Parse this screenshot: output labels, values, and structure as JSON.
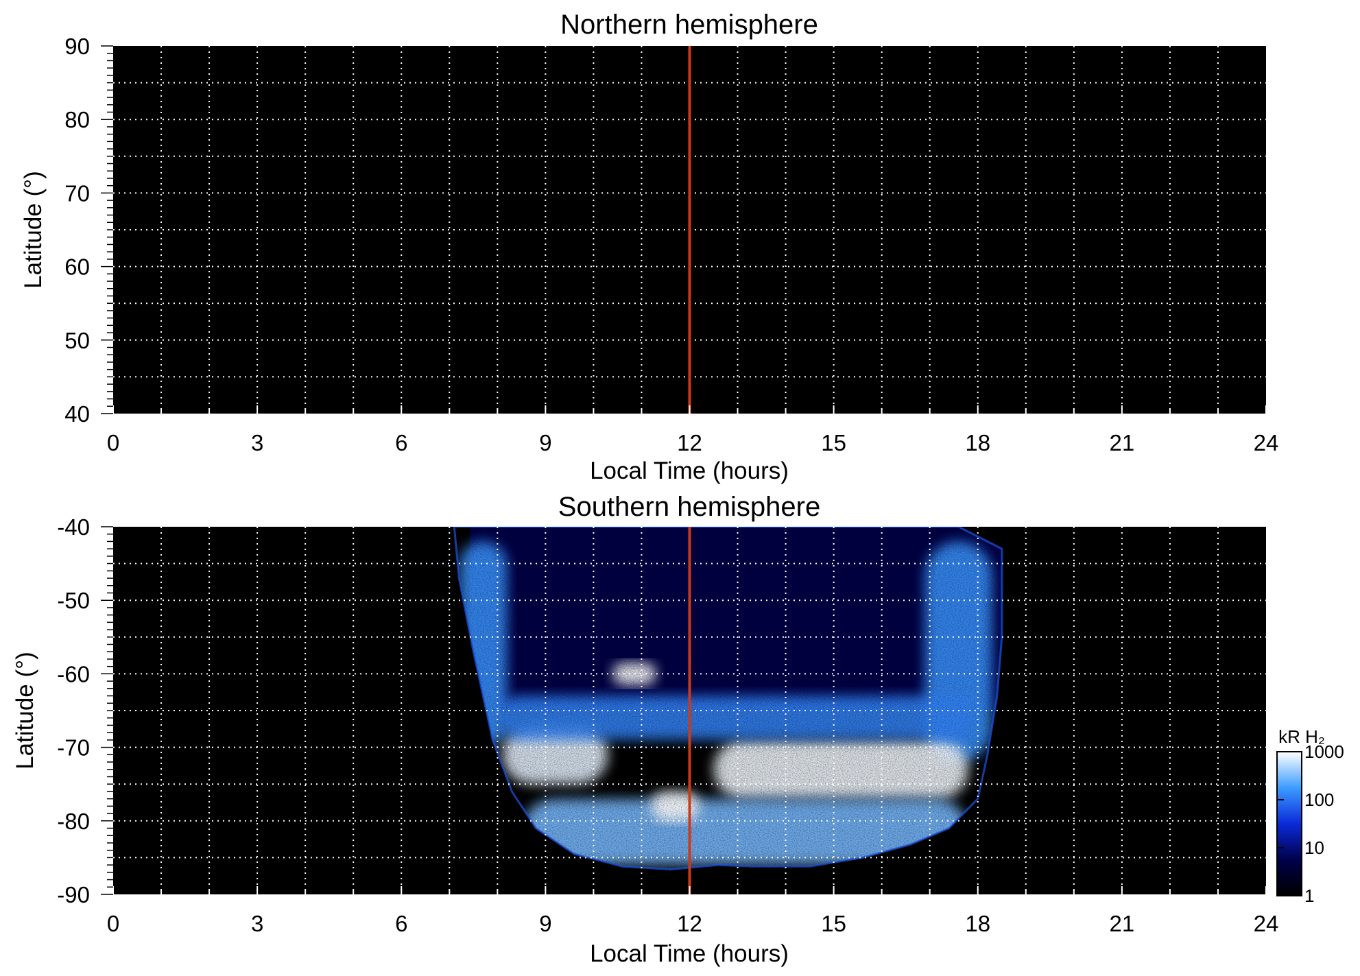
{
  "chart_data": [
    {
      "type": "heatmap",
      "title": "Northern hemisphere",
      "xlabel": "Local Time (hours)",
      "ylabel": "Latitude (°)",
      "xlim": [
        0,
        24
      ],
      "ylim": [
        40,
        90
      ],
      "x_ticks": [
        "0",
        "3",
        "6",
        "9",
        "12",
        "15",
        "18",
        "21",
        "24"
      ],
      "y_ticks": [
        "40",
        "50",
        "60",
        "70",
        "80",
        "90"
      ],
      "grid": true,
      "background": "#000000",
      "marker_line": {
        "x": 12,
        "color": "#cc3a1a"
      },
      "emission": []
    },
    {
      "type": "heatmap",
      "title": "Southern hemisphere",
      "xlabel": "Local Time (hours)",
      "ylabel": "Latitude (°)",
      "xlim": [
        0,
        24
      ],
      "ylim": [
        -90,
        -40
      ],
      "x_ticks": [
        "0",
        "3",
        "6",
        "9",
        "12",
        "15",
        "18",
        "21",
        "24"
      ],
      "y_ticks": [
        "-90",
        "-80",
        "-70",
        "-60",
        "-50",
        "-40"
      ],
      "grid": true,
      "background": "#000000",
      "marker_line": {
        "x": 12,
        "color": "#cc3a1a"
      },
      "coverage_outline": [
        [
          7.1,
          -40
        ],
        [
          7.2,
          -47
        ],
        [
          7.5,
          -57
        ],
        [
          7.7,
          -63
        ],
        [
          7.9,
          -69
        ],
        [
          8.3,
          -76
        ],
        [
          8.8,
          -81
        ],
        [
          9.6,
          -84.5
        ],
        [
          10.6,
          -86.2
        ],
        [
          11.6,
          -86.6
        ],
        [
          12.6,
          -86
        ],
        [
          13.3,
          -86.2
        ],
        [
          14.5,
          -86.2
        ],
        [
          15.6,
          -85
        ],
        [
          16.6,
          -83.2
        ],
        [
          17.4,
          -81
        ],
        [
          18,
          -77
        ],
        [
          18.2,
          -71
        ],
        [
          18.4,
          -63
        ],
        [
          18.5,
          -55
        ],
        [
          18.5,
          -43
        ],
        [
          17.6,
          -40
        ]
      ],
      "emission": [
        {
          "feature": "diffuse background",
          "lt": [
            8,
            18.3
          ],
          "lat": [
            -65,
            -40
          ],
          "intensity_kR": 5
        },
        {
          "feature": "dawn limb brightening",
          "lt": [
            7.2,
            8.2
          ],
          "lat": [
            -70,
            -42
          ],
          "intensity_kR": 150
        },
        {
          "feature": "dusk limb brightening",
          "lt": [
            16.9,
            18.3
          ],
          "lat": [
            -72,
            -42
          ],
          "intensity_kR": 150
        },
        {
          "feature": "main oval (dawn)",
          "lt": [
            8.1,
            10.3
          ],
          "lat": [
            -75,
            -67
          ],
          "intensity_kR": 800
        },
        {
          "feature": "main oval (noon–dusk)",
          "lt": [
            12.5,
            17.8
          ],
          "lat": [
            -77,
            -69
          ],
          "intensity_kR": 900
        },
        {
          "feature": "auroral band",
          "lt": [
            8,
            18
          ],
          "lat": [
            -69,
            -63
          ],
          "intensity_kR": 120
        },
        {
          "feature": "polar region",
          "lt": [
            8.5,
            17.8
          ],
          "lat": [
            -86,
            -77
          ],
          "intensity_kR": 300
        },
        {
          "feature": "bright spot",
          "lt": [
            11.2,
            12.2
          ],
          "lat": [
            -80,
            -76
          ],
          "intensity_kR": 1000
        },
        {
          "feature": "arc",
          "lt": [
            10.4,
            11.3
          ],
          "lat": [
            -61.5,
            -58.5
          ],
          "intensity_kR": 1000
        }
      ],
      "colorbar": {
        "label": "kR H₂",
        "scale": "log",
        "range": [
          1,
          1000
        ],
        "ticks": [
          "1",
          "10",
          "100",
          "1000"
        ],
        "colors": [
          "#000000",
          "#00004a",
          "#0a2ad8",
          "#3d9cff",
          "#ffffff"
        ]
      }
    }
  ]
}
